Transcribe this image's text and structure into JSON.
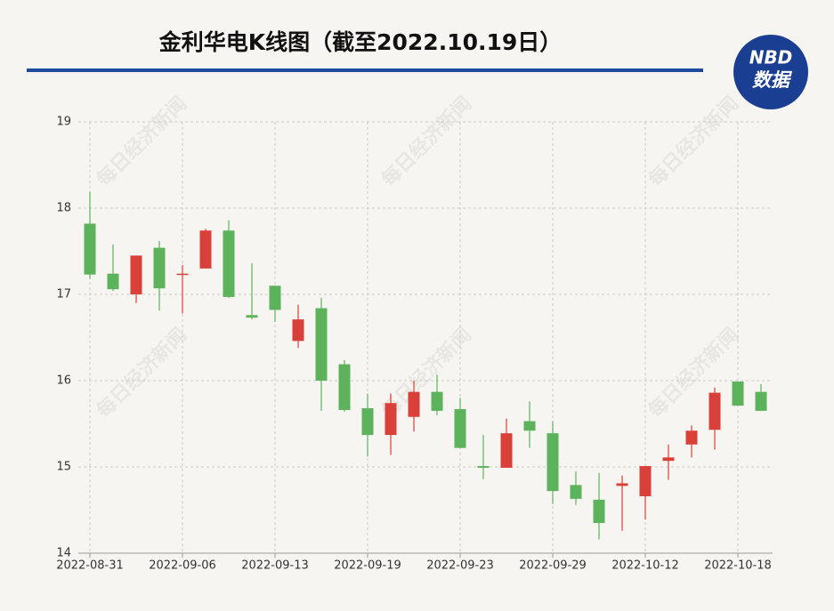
{
  "chart_data": {
    "type": "candlestick",
    "title": "金利华电K线图（截至2022.10.19日）",
    "logo": {
      "top": "NBD",
      "bottom": "数据"
    },
    "watermark": "每日经济新闻",
    "categories": [
      "2022-08-31",
      null,
      null,
      null,
      "2022-09-06",
      null,
      null,
      null,
      "2022-09-13",
      null,
      null,
      null,
      "2022-09-19",
      null,
      null,
      null,
      "2022-09-23",
      null,
      null,
      null,
      "2022-09-29",
      null,
      null,
      null,
      "2022-10-12",
      null,
      null,
      null,
      "2022-10-18",
      null
    ],
    "open": [
      17.82,
      17.24,
      17.0,
      17.54,
      17.23,
      17.3,
      17.74,
      16.76,
      17.1,
      16.46,
      16.84,
      16.19,
      15.68,
      15.37,
      15.58,
      15.87,
      15.67,
      15.01,
      14.99,
      15.53,
      15.39,
      14.79,
      14.62,
      14.78,
      14.66,
      15.07,
      15.26,
      15.43,
      15.99,
      15.87
    ],
    "high": [
      18.19,
      17.58,
      17.45,
      17.62,
      17.34,
      17.76,
      17.86,
      17.36,
      17.1,
      16.88,
      16.96,
      16.24,
      15.85,
      15.85,
      16.0,
      16.07,
      15.8,
      15.37,
      15.56,
      15.76,
      15.53,
      14.95,
      14.93,
      14.9,
      15.01,
      15.26,
      15.48,
      15.92,
      15.99,
      15.96
    ],
    "low": [
      17.18,
      17.04,
      16.9,
      16.81,
      16.78,
      17.3,
      16.96,
      16.71,
      16.68,
      16.38,
      15.65,
      15.64,
      15.12,
      15.14,
      15.41,
      15.6,
      15.22,
      14.86,
      14.99,
      15.22,
      14.57,
      14.56,
      14.16,
      14.26,
      14.39,
      14.85,
      15.11,
      15.2,
      15.71,
      15.65
    ],
    "close": [
      17.23,
      17.06,
      17.45,
      17.07,
      17.24,
      17.74,
      16.97,
      16.73,
      16.82,
      16.71,
      16.0,
      15.66,
      15.37,
      15.74,
      15.87,
      15.65,
      15.22,
      14.99,
      15.39,
      15.42,
      14.72,
      14.63,
      14.35,
      14.81,
      15.01,
      15.11,
      15.42,
      15.86,
      15.71,
      15.65
    ],
    "up_color": "#d9403a",
    "down_color": "#5cb35c",
    "ylim": [
      14,
      19
    ],
    "yticks": [
      14,
      15,
      16,
      17,
      18,
      19
    ],
    "grid": true
  }
}
